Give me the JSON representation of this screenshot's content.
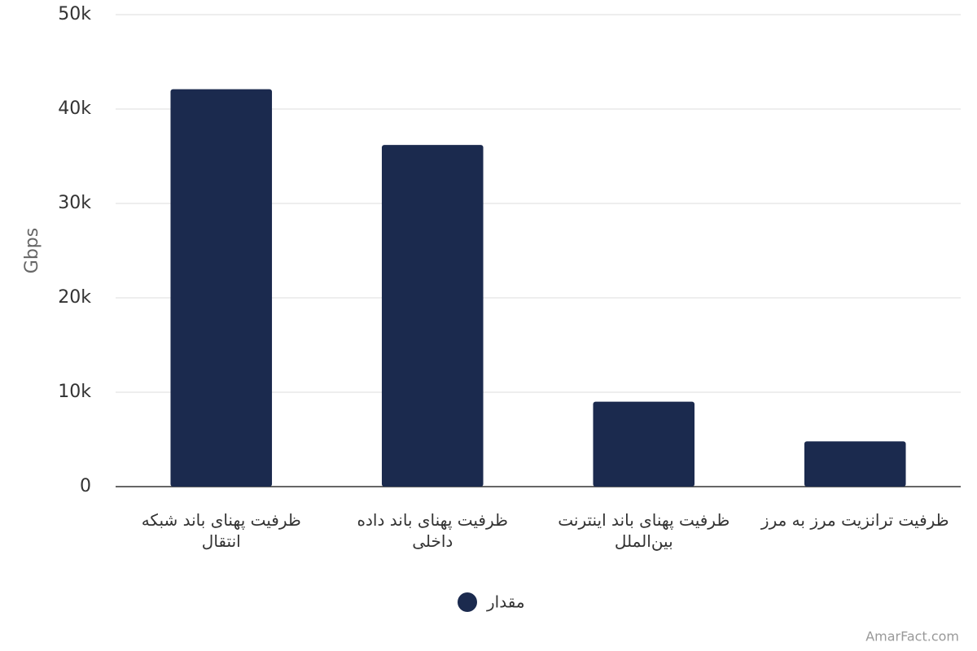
{
  "chart_data": {
    "type": "bar",
    "y_axis_label": "Gbps",
    "categories": [
      "ظرفیت پهنای باند شبکه انتقال",
      "ظرفیت پهنای باند داده داخلی",
      "ظرفیت پهنای باند اینترنت بین‌الملل",
      "ظرفیت ترانزیت مرز به مرز"
    ],
    "series": [
      {
        "name": "مقدار",
        "color": "#1b2a4e",
        "values": [
          42100,
          36200,
          9000,
          4800
        ]
      }
    ],
    "ylim": [
      0,
      50000
    ],
    "yticks": [
      0,
      {
        "value": 10000,
        "label": "10k"
      },
      {
        "value": 20000,
        "label": "20k"
      },
      {
        "value": 30000,
        "label": "30k"
      },
      {
        "value": 40000,
        "label": "40k"
      },
      {
        "value": 50000,
        "label": "50k"
      }
    ],
    "grid": true,
    "legend": "bottom",
    "watermark": "AmarFact.com"
  }
}
